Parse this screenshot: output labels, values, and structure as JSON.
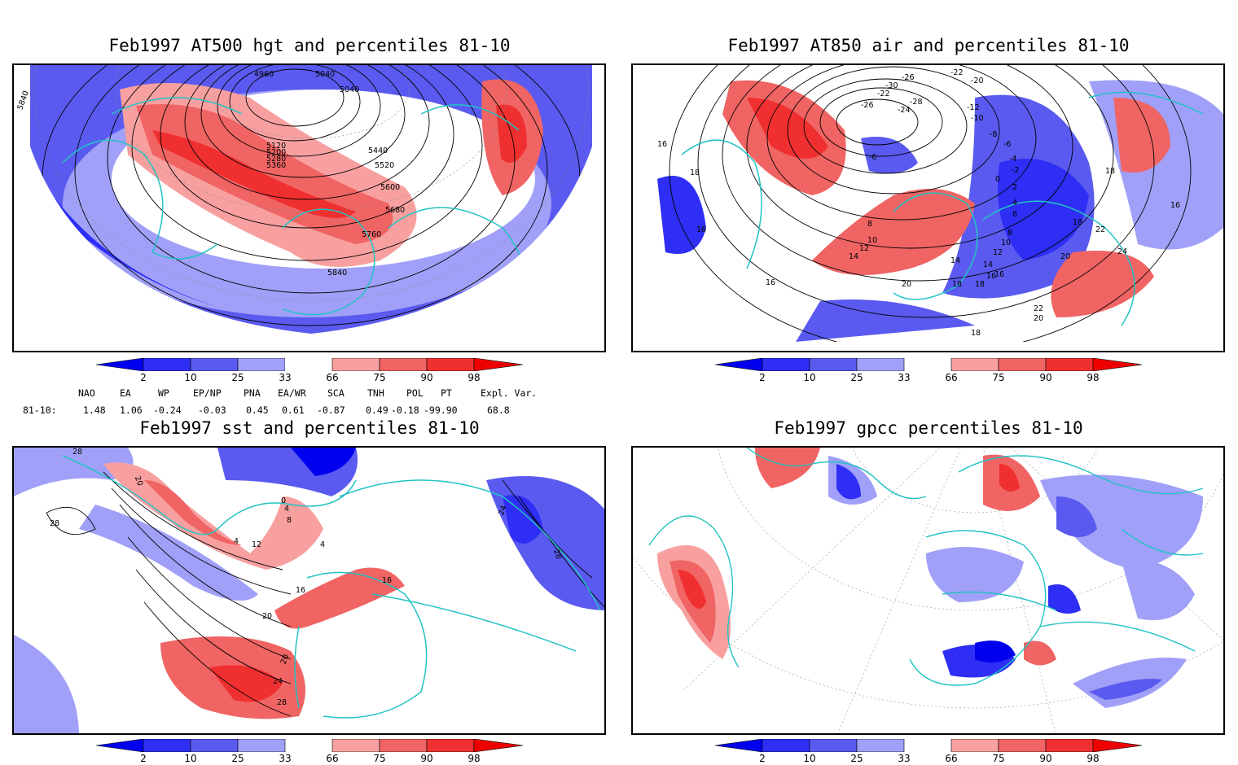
{
  "panels": [
    {
      "title": "Feb1997 AT500 hgt and percentiles 81-10",
      "contour_labels": [
        "4960",
        "5040",
        "5040",
        "5120",
        "5200",
        "5280",
        "5360",
        "5440",
        "5520",
        "5600",
        "5680",
        "5760",
        "5840",
        "5840"
      ]
    },
    {
      "title": "Feb1997 AT850 air and percentiles 81-10",
      "contour_labels": [
        "-26",
        "-22",
        "-30",
        "-28",
        "-26",
        "-24",
        "-22",
        "-20",
        "-12",
        "-10",
        "-8",
        "-6",
        "-4",
        "-6",
        "-2",
        "0",
        "2",
        "4",
        "6",
        "8",
        "10",
        "12",
        "14",
        "16",
        "18",
        "20",
        "22",
        "24",
        "16",
        "16",
        "18",
        "18",
        "16",
        "8",
        "10",
        "12",
        "14",
        "20",
        "18",
        "16",
        "22",
        "20",
        "18",
        "18",
        "16",
        "14"
      ]
    },
    {
      "title": "Feb1997 sst and percentiles 81-10",
      "contour_labels": [
        "28",
        "20",
        "28",
        "0",
        "4",
        "8",
        "4",
        "12",
        "16",
        "20",
        "24",
        "28",
        "16",
        "20",
        "24",
        "28",
        "4"
      ]
    },
    {
      "title": "Feb1997 gpcc percentiles 81-10",
      "contour_labels": []
    }
  ],
  "colorbar": {
    "labels": [
      "2",
      "10",
      "25",
      "33",
      "66",
      "75",
      "90",
      "98"
    ],
    "colors": {
      "b1": "#0000ee",
      "b2": "#2e2ef5",
      "b3": "#5a5af0",
      "b4": "#a0a0f8",
      "r1": "#f8a0a0",
      "r2": "#f06464",
      "r3": "#f03030",
      "r4": "#ee0000",
      "coast": "#22c3c3"
    }
  },
  "indices": {
    "headers": [
      "NAO",
      "EA",
      "WP",
      "EP/NP",
      "PNA",
      "EA/WR",
      "SCA",
      "TNH",
      "POL",
      "PT",
      "Expl. Var."
    ],
    "row_label": "81-10:",
    "values": [
      "1.48",
      "1.06",
      "-0.24",
      "-0.03",
      "0.45",
      "0.61",
      "-0.87",
      "0.49",
      "-0.18",
      "-99.90",
      "68.8"
    ]
  }
}
